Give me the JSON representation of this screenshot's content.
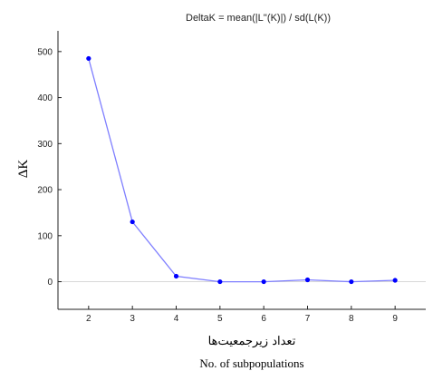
{
  "chart_data": {
    "type": "line",
    "title": "DeltaK = mean(|L''(K)|) / sd(L(K))",
    "ylabel": "ΔK",
    "xlabel_fa": "تعداد زیرجمعیت‌ها",
    "xlabel": "No. of subpopulations",
    "x": [
      2,
      3,
      4,
      5,
      6,
      7,
      8,
      9
    ],
    "series": [
      {
        "values": [
          485,
          130,
          12,
          0,
          0,
          4,
          0,
          3
        ]
      }
    ],
    "xlim": [
      1.3,
      9.7
    ],
    "ylim": [
      -60,
      545
    ],
    "yticks": [
      0,
      100,
      200,
      300,
      400,
      500
    ],
    "xticks": [
      2,
      3,
      4,
      5,
      6,
      7,
      8,
      9
    ],
    "grid": false,
    "zero_line": true,
    "colors": {
      "line": "#7f7fff",
      "marker": "#0000ff",
      "axis": "#222222",
      "zero": "#d8d8d8"
    }
  }
}
